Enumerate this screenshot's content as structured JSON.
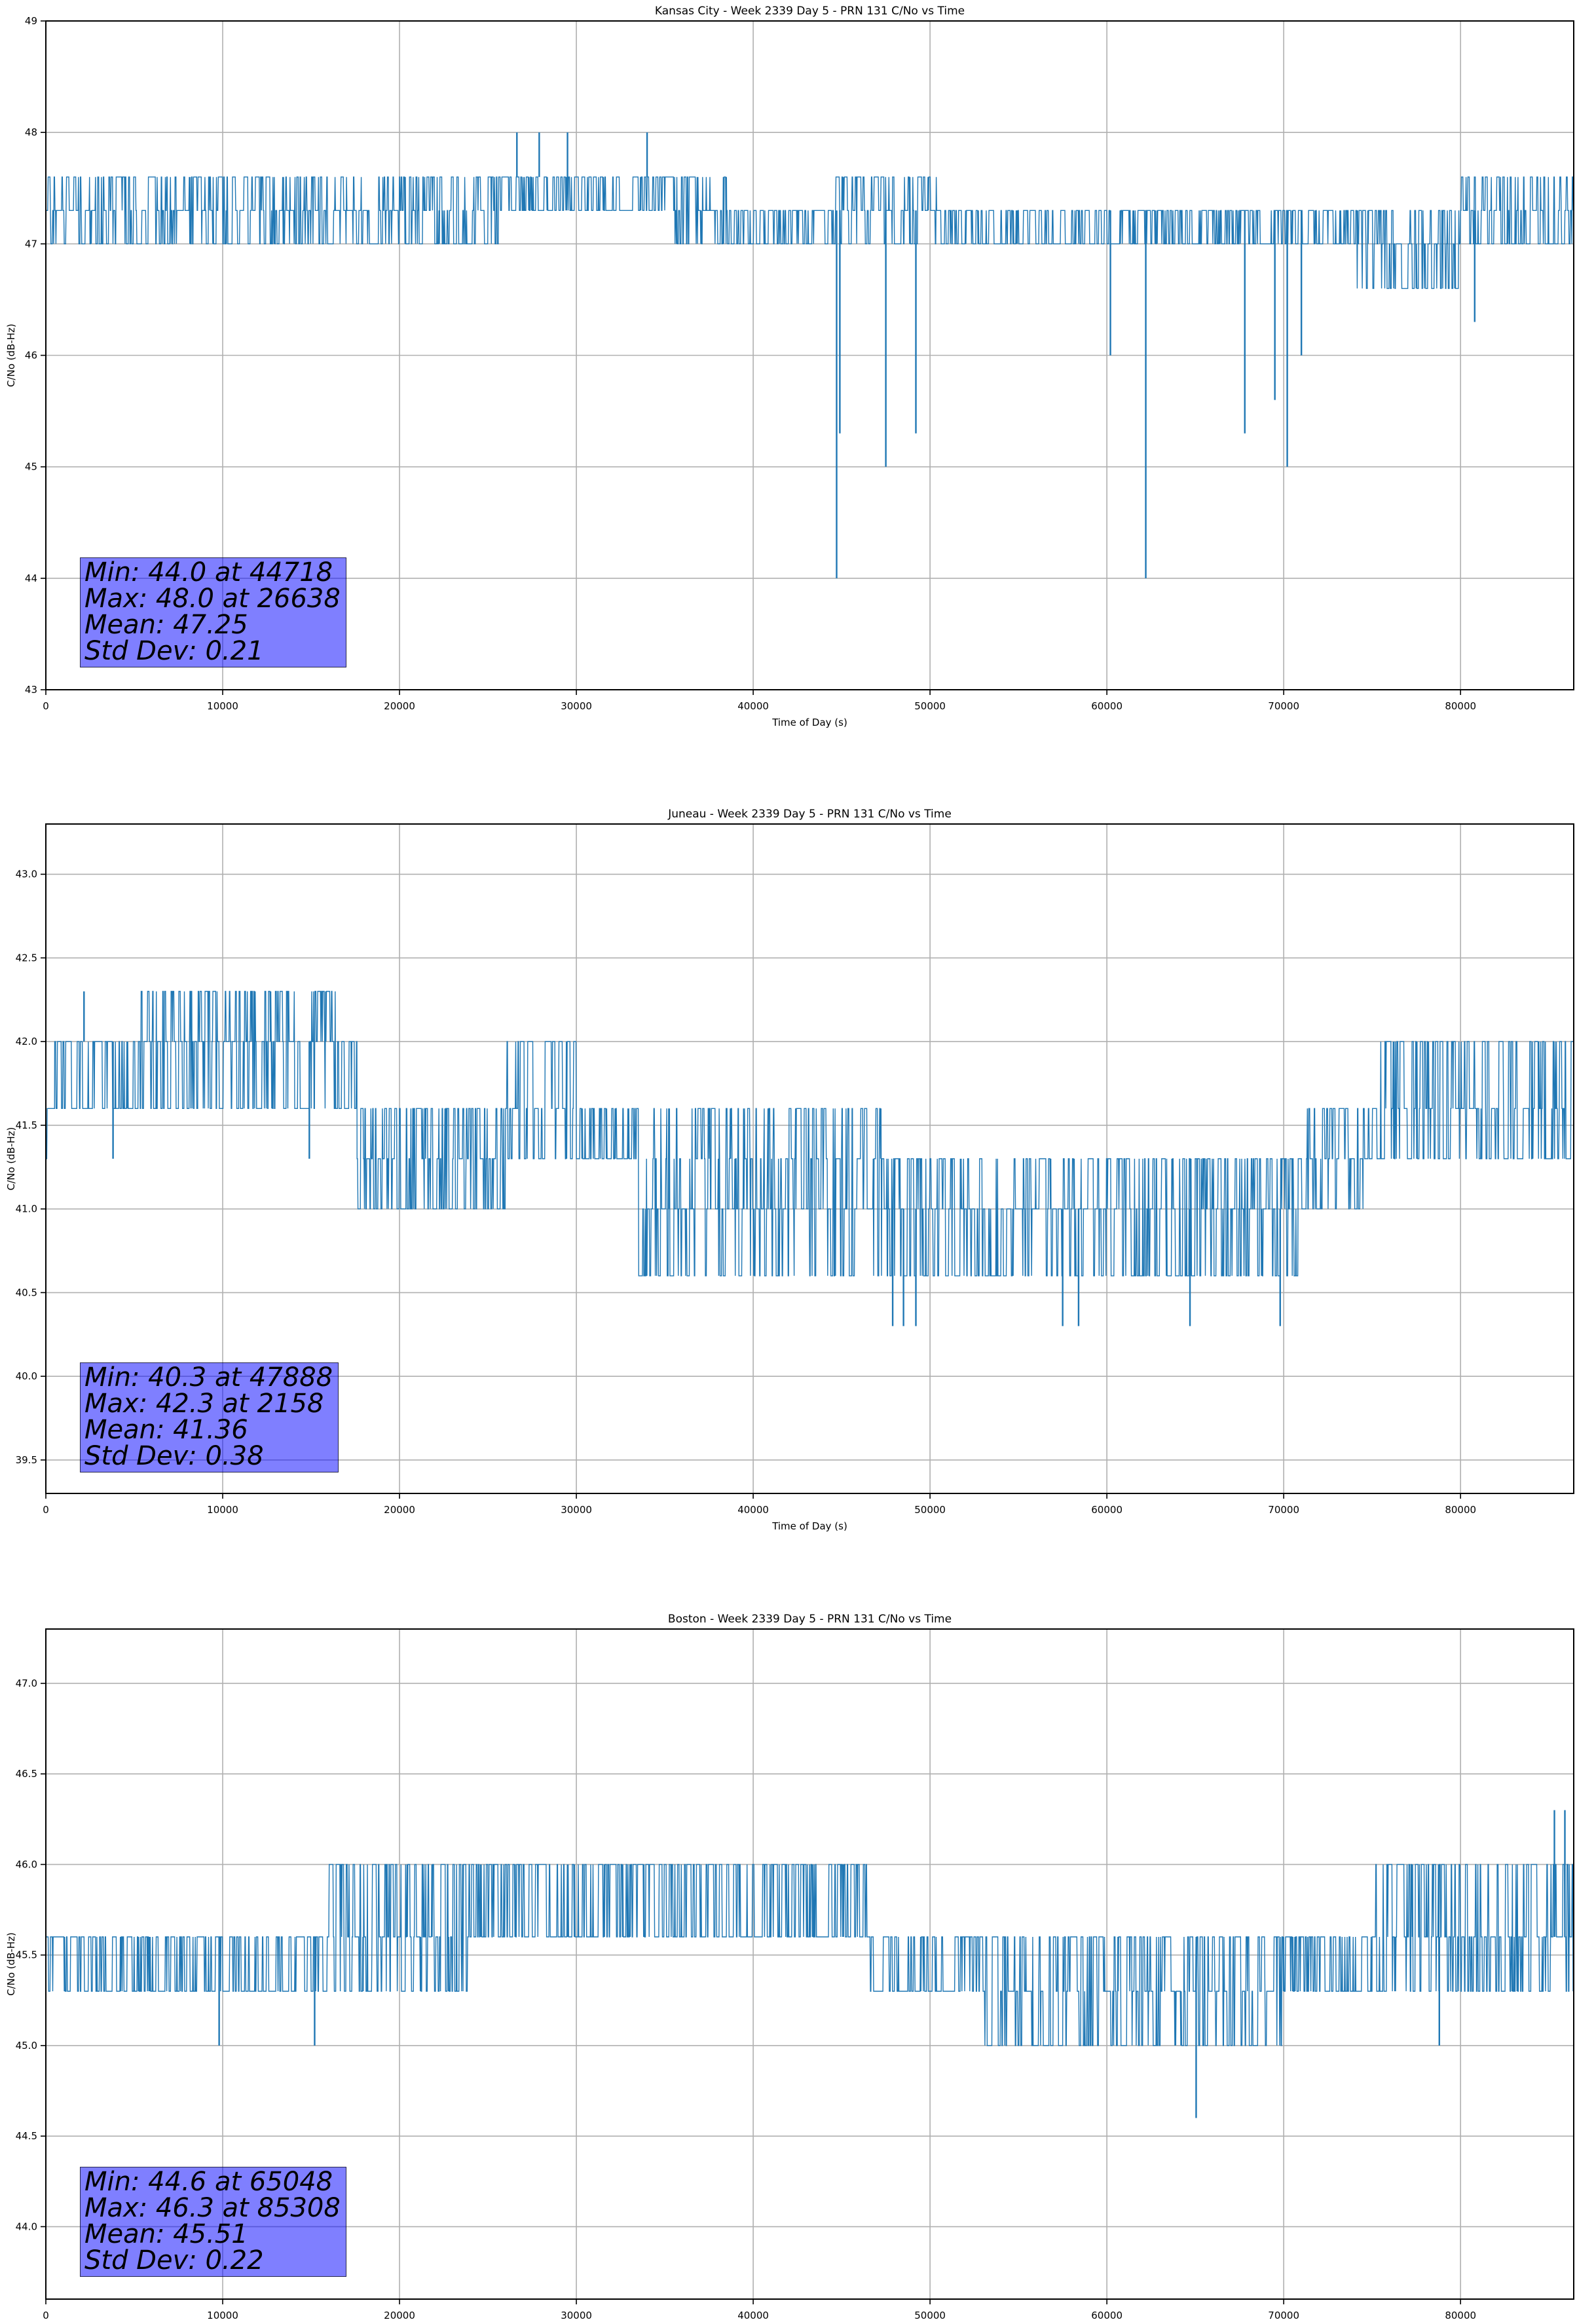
{
  "colors": {
    "series": "#1f77b4",
    "grid": "#b0b0b0",
    "stats_box": "#8080ff"
  },
  "chart_data": [
    {
      "type": "line",
      "title": "Kansas City - Week 2339 Day 5 - PRN 131 C/No vs Time",
      "xlabel": "Time of Day (s)",
      "ylabel": "C/No (dB-Hz)",
      "xlim": [
        0,
        86400
      ],
      "ylim": [
        43,
        49
      ],
      "xticks": [
        0,
        10000,
        20000,
        30000,
        40000,
        50000,
        60000,
        70000,
        80000
      ],
      "xtick_labels": [
        "0",
        "10000",
        "20000",
        "30000",
        "40000",
        "50000",
        "60000",
        "70000",
        "80000"
      ],
      "yticks": [
        43,
        44,
        45,
        46,
        47,
        48,
        49
      ],
      "ytick_labels": [
        "43",
        "44",
        "45",
        "46",
        "47",
        "48",
        "49"
      ],
      "grid": true,
      "segments": [
        {
          "x0": 0,
          "x1": 26000,
          "levels": [
            47.0,
            47.3,
            47.6
          ]
        },
        {
          "x0": 26000,
          "x1": 35500,
          "levels": [
            47.3,
            47.6
          ]
        },
        {
          "x0": 35500,
          "x1": 38500,
          "levels": [
            47.0,
            47.3,
            47.6
          ]
        },
        {
          "x0": 38500,
          "x1": 44500,
          "levels": [
            47.0,
            47.3
          ]
        },
        {
          "x0": 44500,
          "x1": 50500,
          "levels": [
            47.0,
            47.3,
            47.6
          ]
        },
        {
          "x0": 50500,
          "x1": 74000,
          "levels": [
            47.0,
            47.3
          ]
        },
        {
          "x0": 74000,
          "x1": 80000,
          "levels": [
            46.6,
            47.0,
            47.3
          ]
        },
        {
          "x0": 80000,
          "x1": 86400,
          "levels": [
            47.0,
            47.3,
            47.6
          ]
        }
      ],
      "spikes": [
        {
          "x": 26638,
          "y": 48.0
        },
        {
          "x": 27900,
          "y": 48.0
        },
        {
          "x": 29500,
          "y": 48.0
        },
        {
          "x": 34000,
          "y": 48.0
        },
        {
          "x": 44718,
          "y": 44.0
        },
        {
          "x": 44900,
          "y": 45.3
        },
        {
          "x": 47500,
          "y": 45.0
        },
        {
          "x": 49200,
          "y": 45.3
        },
        {
          "x": 60200,
          "y": 46.0
        },
        {
          "x": 62200,
          "y": 44.0
        },
        {
          "x": 67800,
          "y": 45.3
        },
        {
          "x": 69500,
          "y": 45.6
        },
        {
          "x": 70200,
          "y": 45.0
        },
        {
          "x": 71000,
          "y": 46.0
        },
        {
          "x": 80800,
          "y": 46.3
        }
      ],
      "stats": [
        "Min: 44.0 at 44718",
        "Max: 48.0 at 26638",
        "Mean: 47.25",
        "Std Dev: 0.21"
      ]
    },
    {
      "type": "line",
      "title": "Juneau - Week 2339 Day 5 - PRN 131 C/No vs Time",
      "xlabel": "Time of Day (s)",
      "ylabel": "C/No (dB-Hz)",
      "xlim": [
        0,
        86400
      ],
      "ylim": [
        39.3,
        43.3
      ],
      "xticks": [
        0,
        10000,
        20000,
        30000,
        40000,
        50000,
        60000,
        70000,
        80000
      ],
      "xtick_labels": [
        "0",
        "10000",
        "20000",
        "30000",
        "40000",
        "50000",
        "60000",
        "70000",
        "80000"
      ],
      "yticks": [
        39.5,
        40.0,
        40.5,
        41.0,
        41.5,
        42.0,
        42.5,
        43.0
      ],
      "ytick_labels": [
        "39.5",
        "40.0",
        "40.5",
        "41.0",
        "41.5",
        "42.0",
        "42.5",
        "43.0"
      ],
      "grid": true,
      "segments": [
        {
          "x0": 0,
          "x1": 500,
          "levels": [
            41.3,
            41.6
          ]
        },
        {
          "x0": 500,
          "x1": 5000,
          "levels": [
            41.6,
            42.0
          ]
        },
        {
          "x0": 5000,
          "x1": 16500,
          "levels": [
            41.6,
            42.0,
            42.3
          ]
        },
        {
          "x0": 16500,
          "x1": 17600,
          "levels": [
            41.6,
            42.0
          ]
        },
        {
          "x0": 17600,
          "x1": 26000,
          "levels": [
            41.0,
            41.3,
            41.6
          ]
        },
        {
          "x0": 26000,
          "x1": 30000,
          "levels": [
            41.3,
            41.6,
            42.0
          ]
        },
        {
          "x0": 30000,
          "x1": 33500,
          "levels": [
            41.3,
            41.6
          ]
        },
        {
          "x0": 33500,
          "x1": 47500,
          "levels": [
            40.6,
            41.0,
            41.3,
            41.6
          ]
        },
        {
          "x0": 47500,
          "x1": 56000,
          "levels": [
            40.6,
            41.0,
            41.3
          ]
        },
        {
          "x0": 56000,
          "x1": 71000,
          "levels": [
            40.6,
            41.0,
            41.3
          ]
        },
        {
          "x0": 71000,
          "x1": 74500,
          "levels": [
            41.0,
            41.3,
            41.6
          ]
        },
        {
          "x0": 74500,
          "x1": 86400,
          "levels": [
            41.3,
            41.6,
            42.0
          ]
        }
      ],
      "spikes": [
        {
          "x": 2158,
          "y": 42.3
        },
        {
          "x": 47888,
          "y": 40.3
        },
        {
          "x": 48500,
          "y": 40.3
        },
        {
          "x": 49200,
          "y": 40.3
        },
        {
          "x": 57500,
          "y": 40.3
        },
        {
          "x": 58400,
          "y": 40.3
        },
        {
          "x": 64700,
          "y": 40.3
        },
        {
          "x": 69800,
          "y": 40.3
        },
        {
          "x": 3800,
          "y": 41.3
        },
        {
          "x": 14900,
          "y": 41.3
        }
      ],
      "stats": [
        "Min: 40.3 at 47888",
        "Max: 42.3 at 2158",
        "Mean: 41.36",
        "Std Dev: 0.38"
      ]
    },
    {
      "type": "line",
      "title": "Boston - Week 2339 Day 5 - PRN 131 C/No vs Time",
      "xlabel": "Time of Day (s)",
      "ylabel": "C/No (dB-Hz)",
      "xlim": [
        0,
        86400
      ],
      "ylim": [
        43.6,
        47.3
      ],
      "xticks": [
        0,
        10000,
        20000,
        30000,
        40000,
        50000,
        60000,
        70000,
        80000
      ],
      "xtick_labels": [
        "0",
        "10000",
        "20000",
        "30000",
        "40000",
        "50000",
        "60000",
        "70000",
        "80000"
      ],
      "yticks": [
        44.0,
        44.5,
        45.0,
        45.5,
        46.0,
        46.5,
        47.0
      ],
      "ytick_labels": [
        "44.0",
        "44.5",
        "45.0",
        "45.5",
        "46.0",
        "46.5",
        "47.0"
      ],
      "grid": true,
      "segments": [
        {
          "x0": 0,
          "x1": 16000,
          "levels": [
            45.3,
            45.6
          ]
        },
        {
          "x0": 16000,
          "x1": 24000,
          "levels": [
            45.3,
            45.6,
            46.0
          ]
        },
        {
          "x0": 24000,
          "x1": 46500,
          "levels": [
            45.6,
            46.0
          ]
        },
        {
          "x0": 46500,
          "x1": 53000,
          "levels": [
            45.3,
            45.6
          ]
        },
        {
          "x0": 53000,
          "x1": 70000,
          "levels": [
            45.0,
            45.3,
            45.6
          ]
        },
        {
          "x0": 70000,
          "x1": 75000,
          "levels": [
            45.3,
            45.6
          ]
        },
        {
          "x0": 75000,
          "x1": 86400,
          "levels": [
            45.3,
            45.6,
            46.0
          ]
        }
      ],
      "spikes": [
        {
          "x": 65048,
          "y": 44.6
        },
        {
          "x": 85308,
          "y": 46.3
        },
        {
          "x": 85900,
          "y": 46.3
        },
        {
          "x": 9800,
          "y": 45.0
        },
        {
          "x": 15200,
          "y": 45.0
        },
        {
          "x": 78800,
          "y": 45.0
        }
      ],
      "stats": [
        "Min: 44.6 at 65048",
        "Max: 46.3 at 85308",
        "Mean: 45.51",
        "Std Dev: 0.22"
      ]
    }
  ]
}
